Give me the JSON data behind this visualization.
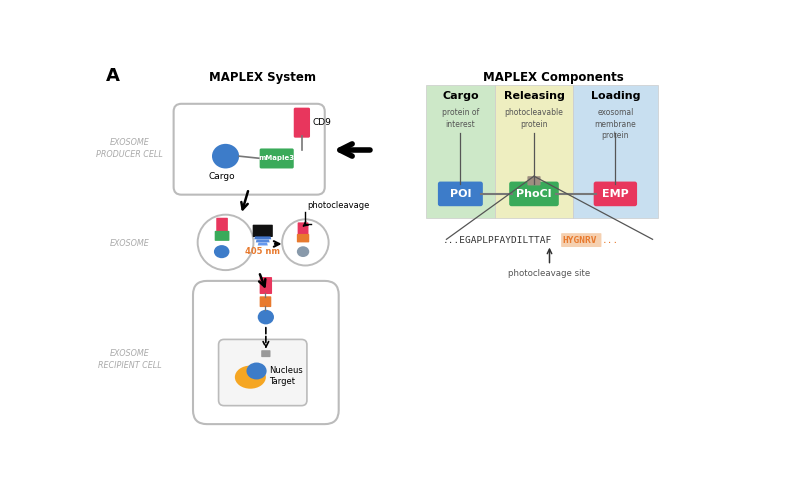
{
  "title_left": "MAPLEX System",
  "title_right": "MAPLEX Components",
  "label_A": "A",
  "left_labels": [
    "EXOSOME\nPRODUCER CELL",
    "EXOSOME",
    "EXOSOME\nRECIPIENT CELL"
  ],
  "component_headers": [
    "Cargo",
    "Releasing",
    "Loading"
  ],
  "component_subtitles": [
    "protein of\ninterest",
    "photocleavable\nprotein",
    "exosomal\nmembrane\nprotein"
  ],
  "component_box_labels": [
    "POI",
    "PhoCl",
    "EMP"
  ],
  "component_box_colors": [
    "#3d7cc9",
    "#3aaa5a",
    "#e8365d"
  ],
  "component_bg_colors": [
    "#cde8c8",
    "#eeeec0",
    "#c8dff0"
  ],
  "sequence_black": "...EGAPLPFAYDILTTAF",
  "sequence_orange": "HYGNRV",
  "sequence_orange_dots": "...",
  "photocleavage_label": "photocleavage site",
  "photocleavage_label2": "photocleavage",
  "nm_label": "405 nm",
  "cd9_label": "CD9",
  "mmaple3_label": "mMaple3",
  "cargo_label": "Cargo",
  "nucleus_label": "Nucleus\nTarget",
  "pink_color": "#e8365d",
  "green_color": "#3aaa5a",
  "blue_color": "#3d7cc9",
  "orange_color": "#e87a2e",
  "blue_gray": "#8899aa",
  "bg_white": "#ffffff",
  "gray_label_color": "#aaaaaa",
  "linker_gray": "#9e8e80"
}
